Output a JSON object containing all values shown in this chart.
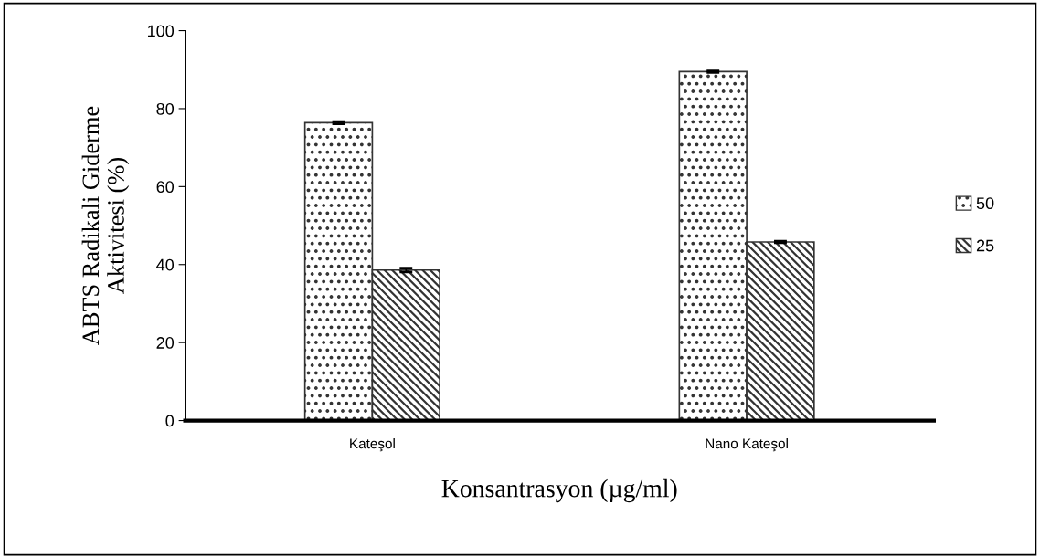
{
  "chart_data": {
    "type": "bar",
    "xlabel": "Konsantrasyon (µg/ml)",
    "ylabel": "ABTS Radikali Giderme\nAktivitesi (%)",
    "categories": [
      "Kateşol",
      "Nano Kateşol"
    ],
    "series": [
      {
        "name": "50",
        "color": "#333333",
        "values": [
          76.4,
          89.5
        ],
        "errors": [
          0.3,
          0.2
        ]
      },
      {
        "name": "25",
        "color": "#333333",
        "values": [
          38.6,
          45.8
        ],
        "errors": [
          0.5,
          0.2
        ]
      }
    ],
    "ylim": [
      0,
      100
    ],
    "yticks": [
      0,
      20,
      40,
      60,
      80,
      100
    ],
    "grid": false,
    "legend": "right"
  }
}
